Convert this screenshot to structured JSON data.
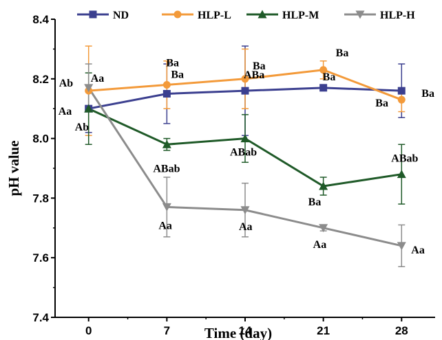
{
  "chart_data": {
    "type": "line",
    "xlabel": "Time (day)",
    "ylabel": "pH value",
    "x": [
      0,
      7,
      14,
      21,
      28
    ],
    "xticks": [
      "0",
      "7",
      "14",
      "21",
      "28"
    ],
    "ylim": [
      7.4,
      8.4
    ],
    "yticks": [
      "7.4",
      "7.6",
      "7.8",
      "8.0",
      "8.2",
      "8.4"
    ],
    "grid": false,
    "legend_position": "top",
    "series": [
      {
        "name": "ND",
        "color": "#3b3f8f",
        "marker": "square",
        "values": [
          8.1,
          8.15,
          8.16,
          8.17,
          8.16
        ],
        "errors": [
          0.08,
          0.1,
          0.15,
          0.0,
          0.09
        ],
        "labels": [
          "Aa",
          "Ba",
          "ABa",
          "Ba",
          "Ba"
        ]
      },
      {
        "name": "HLP-L",
        "color": "#f39a3a",
        "marker": "circle",
        "values": [
          8.16,
          8.18,
          8.2,
          8.23,
          8.13
        ],
        "errors": [
          0.15,
          0.08,
          0.1,
          0.03,
          0.04
        ],
        "labels": [
          "Ab",
          "Ba",
          "Ba",
          "Ba",
          "Ba"
        ]
      },
      {
        "name": "HLP-M",
        "color": "#1f5a28",
        "marker": "triangle-up",
        "values": [
          8.1,
          7.98,
          8.0,
          7.84,
          7.88
        ],
        "errors": [
          0.12,
          0.02,
          0.08,
          0.03,
          0.1
        ],
        "labels": [
          "Ab",
          "ABab",
          "ABab",
          "Ba",
          "ABab"
        ]
      },
      {
        "name": "HLP-H",
        "color": "#8c8c8c",
        "marker": "triangle-down",
        "values": [
          8.17,
          7.77,
          7.76,
          7.7,
          7.64
        ],
        "errors": [
          0.08,
          0.1,
          0.09,
          0.01,
          0.07
        ],
        "labels": [
          "Aa",
          "Aa",
          "Aa",
          "Aa",
          "Aa"
        ]
      }
    ]
  }
}
